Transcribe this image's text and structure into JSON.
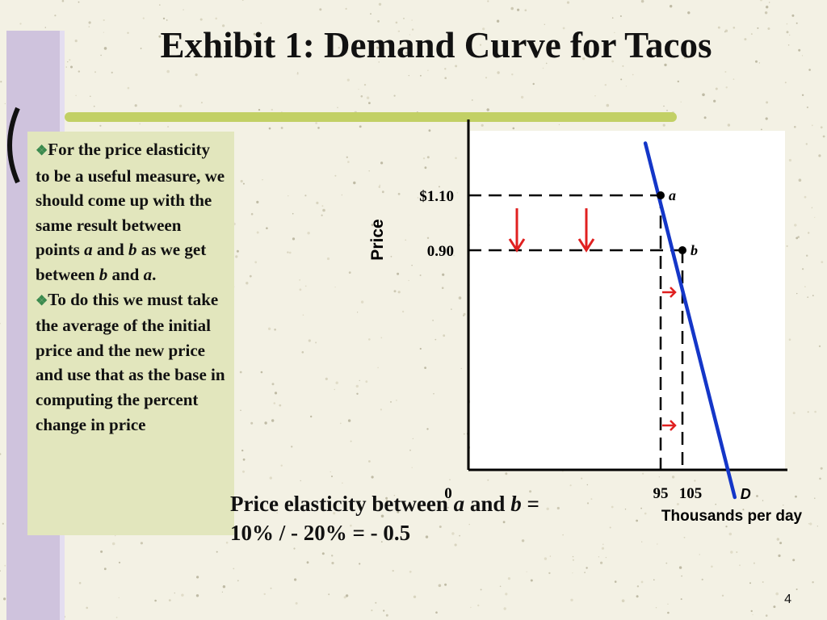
{
  "slide": {
    "title": "Exhibit 1: Demand Curve for Tacos",
    "page_number": "4"
  },
  "textbox": {
    "bullets": [
      {
        "parts": [
          {
            "t": "For the price elasticity to be a useful measure, we should come up with the same result between points ",
            "i": false
          },
          {
            "t": "a",
            "i": true
          },
          {
            "t": " and ",
            "i": false
          },
          {
            "t": "b",
            "i": true
          },
          {
            "t": " as we get between ",
            "i": false
          },
          {
            "t": "b",
            "i": true
          },
          {
            "t": " and ",
            "i": false
          },
          {
            "t": "a",
            "i": true
          },
          {
            "t": ".",
            "i": false
          }
        ]
      },
      {
        "parts": [
          {
            "t": "To do this we must take the average of the initial price and the new price and use that as the base in computing the percent change in price",
            "i": false
          }
        ]
      }
    ]
  },
  "formula": {
    "line1_parts": [
      {
        "t": "Price elasticity between ",
        "i": false
      },
      {
        "t": "a",
        "i": true
      },
      {
        "t": " and ",
        "i": false
      },
      {
        "t": "b",
        "i": true
      },
      {
        "t": " =",
        "i": false
      }
    ],
    "line2": "10%  / - 20%  = - 0.5"
  },
  "chart_data": {
    "type": "line",
    "xlabel": "Thousands per day",
    "ylabel": "Price",
    "origin_label": "0",
    "x_ticks": [
      {
        "value": 95,
        "label": "95"
      },
      {
        "value": 105,
        "label": "105"
      }
    ],
    "y_ticks": [
      {
        "value": 1.1,
        "label": "$1.10"
      },
      {
        "value": 0.9,
        "label": "0.90"
      }
    ],
    "series": [
      {
        "name": "D",
        "color": "#1436c8",
        "x": [
          88,
          129
        ],
        "y": [
          1.29,
          0.0
        ]
      }
    ],
    "points": [
      {
        "label": "a",
        "x": 95,
        "y": 1.1
      },
      {
        "label": "b",
        "x": 105,
        "y": 0.9
      }
    ],
    "arrows": [
      {
        "direction": "down",
        "color": "#e02020"
      },
      {
        "direction": "down",
        "color": "#e02020"
      },
      {
        "direction": "right",
        "color": "#e02020"
      },
      {
        "direction": "right",
        "color": "#e02020"
      }
    ],
    "grid": false
  }
}
